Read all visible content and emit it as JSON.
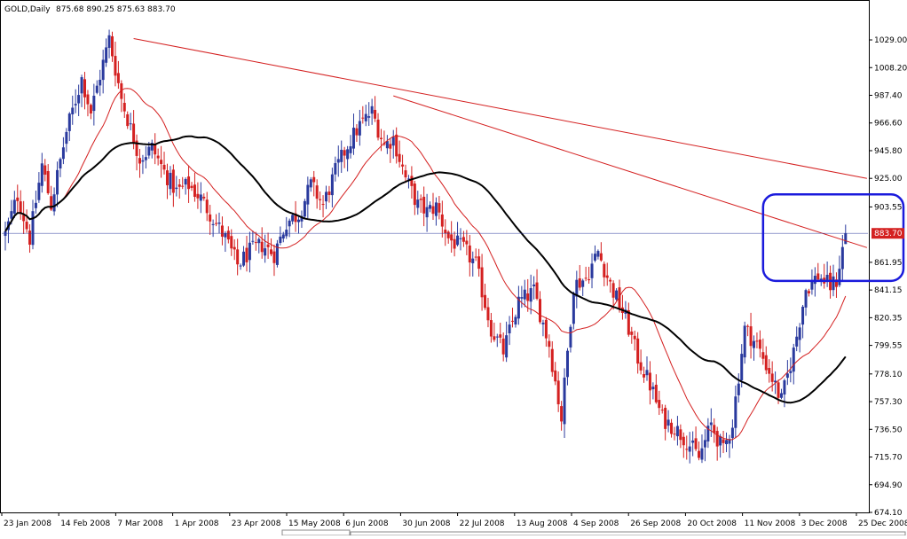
{
  "header": {
    "symbol": "GOLD,Daily",
    "ohlc": "875.68 890.25 875.63 883.70"
  },
  "colors": {
    "bull": "#2a3a9e",
    "bear": "#d42020",
    "background": "#ffffff",
    "ma_short": "#d42020",
    "ma_long": "#000000",
    "trendline": "#d42020",
    "price_line": "#2a3a9e",
    "highlight_box": "#1a1adc"
  },
  "chart_data": {
    "type": "candlestick",
    "title": "GOLD,Daily",
    "x_tick_labels": [
      "23 Jan 2008",
      "14 Feb 2008",
      "7 Mar 2008",
      "1 Apr 2008",
      "23 Apr 2008",
      "15 May 2008",
      "6 Jun 2008",
      "30 Jun 2008",
      "22 Jul 2008",
      "13 Aug 2008",
      "4 Sep 2008",
      "26 Sep 2008",
      "20 Oct 2008",
      "11 Nov 2008",
      "3 Dec 2008",
      "25 Dec 2008"
    ],
    "y_tick_labels": [
      "1029.00",
      "1008.20",
      "987.40",
      "966.60",
      "945.80",
      "925.00",
      "903.55",
      "861.95",
      "841.15",
      "820.35",
      "799.55",
      "778.10",
      "757.30",
      "736.50",
      "715.70",
      "694.90",
      "674.10"
    ],
    "ylim": [
      674.1,
      1043
    ],
    "last_price": "883.70",
    "path_points": [
      [
        0,
        883
      ],
      [
        4,
        912
      ],
      [
        8,
        880
      ],
      [
        12,
        935
      ],
      [
        15,
        905
      ],
      [
        20,
        960
      ],
      [
        25,
        1000
      ],
      [
        28,
        975
      ],
      [
        34,
        1030
      ],
      [
        38,
        985
      ],
      [
        44,
        940
      ],
      [
        48,
        948
      ],
      [
        52,
        930
      ],
      [
        56,
        915
      ],
      [
        60,
        920
      ],
      [
        64,
        910
      ],
      [
        68,
        895
      ],
      [
        72,
        880
      ],
      [
        76,
        860
      ],
      [
        80,
        870
      ],
      [
        84,
        875
      ],
      [
        88,
        868
      ],
      [
        92,
        892
      ],
      [
        96,
        898
      ],
      [
        100,
        920
      ],
      [
        104,
        905
      ],
      [
        108,
        930
      ],
      [
        112,
        950
      ],
      [
        116,
        965
      ],
      [
        120,
        975
      ],
      [
        124,
        950
      ],
      [
        127,
        955
      ],
      [
        131,
        925
      ],
      [
        135,
        905
      ],
      [
        138,
        900
      ],
      [
        141,
        904
      ],
      [
        145,
        880
      ],
      [
        150,
        872
      ],
      [
        154,
        860
      ],
      [
        159,
        812
      ],
      [
        163,
        795
      ],
      [
        168,
        832
      ],
      [
        173,
        840
      ],
      [
        178,
        800
      ],
      [
        182,
        745
      ],
      [
        186,
        845
      ],
      [
        190,
        850
      ],
      [
        194,
        870
      ],
      [
        198,
        845
      ],
      [
        203,
        820
      ],
      [
        207,
        790
      ],
      [
        211,
        770
      ],
      [
        215,
        745
      ],
      [
        219,
        738
      ],
      [
        223,
        728
      ],
      [
        227,
        715
      ],
      [
        231,
        740
      ],
      [
        235,
        720
      ],
      [
        238,
        742
      ],
      [
        242,
        812
      ],
      [
        246,
        800
      ],
      [
        250,
        780
      ],
      [
        254,
        758
      ],
      [
        258,
        795
      ],
      [
        262,
        842
      ],
      [
        266,
        852
      ],
      [
        270,
        844
      ],
      [
        272,
        848
      ],
      [
        275,
        884
      ]
    ],
    "x_range_index": [
      0,
      280
    ],
    "ma_short_period": 20,
    "ma_long_period": 50,
    "trendlines": [
      {
        "from": [
          42,
          1030
        ],
        "to": [
          282,
          925
        ]
      },
      {
        "from": [
          127,
          987
        ],
        "to": [
          282,
          873
        ]
      }
    ],
    "highlight_box": {
      "x_index": [
        248,
        282
      ],
      "y_range": [
        848,
        913
      ]
    },
    "grid": false
  }
}
